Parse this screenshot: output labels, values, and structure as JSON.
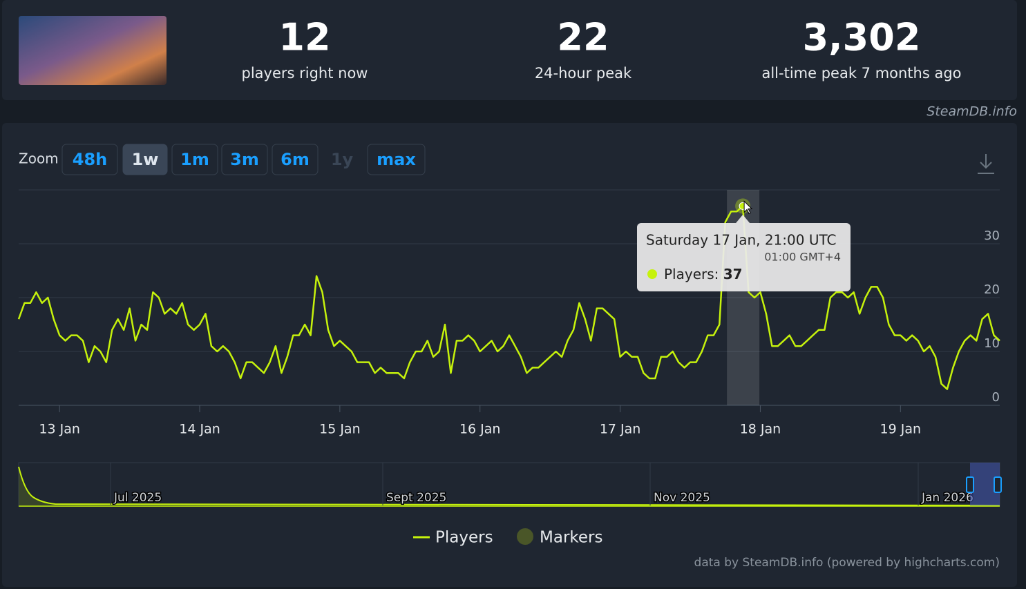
{
  "header": {
    "stats": [
      {
        "value": "12",
        "label": "players right now"
      },
      {
        "value": "22",
        "label": "24-hour peak"
      },
      {
        "value": "3,302",
        "label": "all-time peak 7 months ago"
      }
    ],
    "brand": "SteamDB.info"
  },
  "zoom": {
    "label": "Zoom",
    "buttons": [
      "48h",
      "1w",
      "1m",
      "3m",
      "6m",
      "1y",
      "max"
    ],
    "active": 1,
    "disabled": 5
  },
  "chart_data": {
    "type": "line",
    "categories": [
      null,
      null,
      null,
      null,
      null,
      null,
      null,
      "13 Jan",
      null,
      null,
      null,
      null,
      null,
      null,
      null,
      null,
      null,
      null,
      null,
      null,
      null,
      null,
      null,
      null,
      null,
      null,
      null,
      null,
      null,
      null,
      null,
      "14 Jan",
      null,
      null,
      null,
      null,
      null,
      null,
      null,
      null,
      null,
      null,
      null,
      null,
      null,
      null,
      null,
      null,
      null,
      null,
      null,
      null,
      null,
      null,
      null,
      "15 Jan",
      null,
      null,
      null,
      null,
      null,
      null,
      null,
      null,
      null,
      null,
      null,
      null,
      null,
      null,
      null,
      null,
      null,
      null,
      null,
      null,
      null,
      null,
      null,
      "16 Jan",
      null,
      null,
      null,
      null,
      null,
      null,
      null,
      null,
      null,
      null,
      null,
      null,
      null,
      null,
      null,
      null,
      null,
      null,
      null,
      null,
      null,
      null,
      null,
      "17 Jan",
      null,
      null,
      null,
      null,
      null,
      null,
      null,
      null,
      null,
      null,
      null,
      null,
      null,
      null,
      null,
      null,
      null,
      null,
      null,
      null,
      null,
      null,
      null,
      "18 Jan",
      null,
      null,
      null,
      null,
      null,
      null,
      null,
      null,
      null,
      null,
      null,
      null,
      null,
      null,
      null,
      null,
      null,
      null,
      null,
      null,
      null,
      null,
      null,
      "19 Jan",
      null,
      null,
      null,
      null,
      null,
      null,
      null,
      null,
      null,
      null,
      null,
      null,
      null,
      null,
      null,
      null,
      null
    ],
    "series": [
      {
        "name": "Players",
        "color": "#c6f20c",
        "values": [
          16,
          19,
          19,
          21,
          19,
          20,
          16,
          13,
          12,
          13,
          13,
          12,
          8,
          11,
          10,
          8,
          14,
          16,
          14,
          18,
          12,
          15,
          14,
          21,
          20,
          17,
          18,
          17,
          19,
          15,
          14,
          15,
          17,
          11,
          10,
          11,
          10,
          8,
          5,
          8,
          8,
          7,
          6,
          8,
          11,
          6,
          9,
          13,
          13,
          15,
          13,
          24,
          21,
          14,
          11,
          12,
          11,
          10,
          8,
          8,
          8,
          6,
          7,
          6,
          6,
          6,
          5,
          8,
          10,
          10,
          12,
          9,
          10,
          15,
          6,
          12,
          12,
          13,
          12,
          10,
          11,
          12,
          10,
          11,
          13,
          11,
          9,
          6,
          7,
          7,
          8,
          9,
          10,
          9,
          12,
          14,
          19,
          16,
          12,
          18,
          18,
          17,
          16,
          9,
          10,
          9,
          9,
          6,
          5,
          5,
          9,
          9,
          10,
          8,
          7,
          8,
          8,
          10,
          13,
          13,
          15,
          34,
          36,
          36,
          37,
          21,
          20,
          21,
          17,
          11,
          11,
          12,
          13,
          11,
          11,
          12,
          13,
          14,
          14,
          20,
          21,
          21,
          20,
          21,
          17,
          20,
          22,
          22,
          20,
          15,
          13,
          13,
          12,
          13,
          12,
          10,
          11,
          9,
          4,
          3,
          7,
          10,
          12,
          13,
          12,
          16,
          17,
          13,
          12
        ]
      }
    ],
    "markers": {
      "name": "Markers",
      "color": "#4a5628"
    },
    "ylim": [
      0,
      40
    ],
    "yticks": [
      0,
      10,
      20,
      30
    ],
    "grid": true
  },
  "tooltip": {
    "title": "Saturday 17 Jan, 21:00 UTC",
    "subtitle": "01:00 GMT+4",
    "label": "Players:",
    "point": 124
  },
  "navigator": {
    "labels": [
      "Jul 2025",
      "Sept 2025",
      "Nov 2025",
      "Jan 2026"
    ]
  },
  "credits": "data by SteamDB.info (powered by highcharts.com)"
}
